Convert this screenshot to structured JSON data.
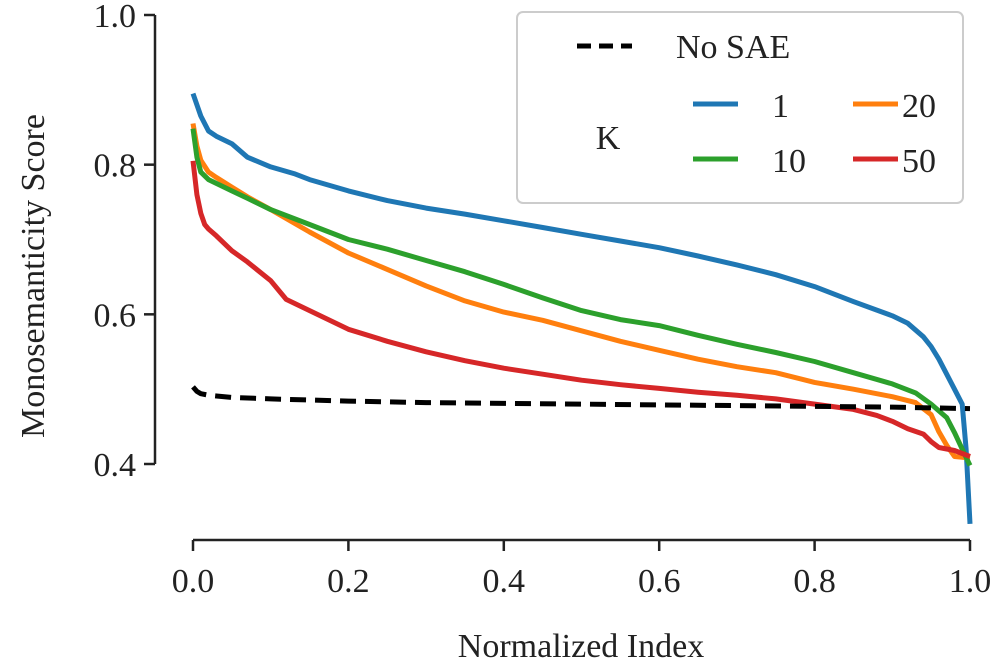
{
  "chart_data": {
    "type": "line",
    "title": "",
    "xlabel": "Normalized Index",
    "ylabel": "Monosemanticity Score",
    "xlim": [
      0.0,
      1.0
    ],
    "ylim": [
      0.32,
      1.0
    ],
    "xticks": [
      "0.0",
      "0.2",
      "0.4",
      "0.6",
      "0.8",
      "1.0"
    ],
    "yticks": [
      "0.4",
      "0.6",
      "0.8",
      "1.0"
    ],
    "grid": false,
    "legend": {
      "placement": "top-right",
      "baseline_label": "No SAE",
      "group_title": "K"
    },
    "series": [
      {
        "name": "No SAE",
        "role": "baseline",
        "color": "#000000",
        "dash": true,
        "x": [
          0.0,
          0.005,
          0.01,
          0.02,
          0.05,
          0.1,
          0.2,
          0.3,
          0.4,
          0.5,
          0.6,
          0.7,
          0.8,
          0.9,
          0.95,
          1.0
        ],
        "y": [
          0.503,
          0.497,
          0.494,
          0.492,
          0.489,
          0.487,
          0.484,
          0.482,
          0.481,
          0.48,
          0.479,
          0.478,
          0.477,
          0.476,
          0.475,
          0.474
        ]
      },
      {
        "name": "1",
        "color": "#1f77b4",
        "x": [
          0.0,
          0.005,
          0.01,
          0.02,
          0.03,
          0.05,
          0.07,
          0.1,
          0.13,
          0.15,
          0.2,
          0.25,
          0.3,
          0.35,
          0.4,
          0.45,
          0.5,
          0.55,
          0.6,
          0.65,
          0.7,
          0.75,
          0.8,
          0.85,
          0.9,
          0.92,
          0.94,
          0.95,
          0.96,
          0.97,
          0.98,
          0.99,
          0.995,
          1.0
        ],
        "y": [
          0.895,
          0.88,
          0.865,
          0.845,
          0.838,
          0.828,
          0.81,
          0.797,
          0.788,
          0.78,
          0.765,
          0.752,
          0.742,
          0.734,
          0.725,
          0.716,
          0.707,
          0.698,
          0.689,
          0.678,
          0.666,
          0.653,
          0.637,
          0.617,
          0.598,
          0.588,
          0.57,
          0.557,
          0.54,
          0.52,
          0.5,
          0.48,
          0.42,
          0.32
        ]
      },
      {
        "name": "10",
        "color": "#2ca02c",
        "x": [
          0.0,
          0.005,
          0.01,
          0.02,
          0.03,
          0.05,
          0.07,
          0.1,
          0.15,
          0.2,
          0.25,
          0.3,
          0.35,
          0.4,
          0.45,
          0.5,
          0.55,
          0.6,
          0.65,
          0.7,
          0.75,
          0.8,
          0.85,
          0.9,
          0.93,
          0.95,
          0.97,
          0.98,
          0.99,
          1.0
        ],
        "y": [
          0.848,
          0.81,
          0.79,
          0.78,
          0.775,
          0.765,
          0.755,
          0.74,
          0.72,
          0.7,
          0.687,
          0.672,
          0.657,
          0.64,
          0.622,
          0.605,
          0.593,
          0.585,
          0.572,
          0.56,
          0.549,
          0.537,
          0.522,
          0.507,
          0.495,
          0.48,
          0.462,
          0.442,
          0.42,
          0.398
        ]
      },
      {
        "name": "20",
        "color": "#ff7f0e",
        "x": [
          0.0,
          0.005,
          0.01,
          0.02,
          0.03,
          0.05,
          0.07,
          0.1,
          0.15,
          0.2,
          0.25,
          0.3,
          0.35,
          0.4,
          0.45,
          0.5,
          0.55,
          0.6,
          0.65,
          0.7,
          0.75,
          0.8,
          0.85,
          0.9,
          0.93,
          0.95,
          0.96,
          0.97,
          0.98,
          1.0
        ],
        "y": [
          0.855,
          0.825,
          0.806,
          0.79,
          0.783,
          0.77,
          0.757,
          0.74,
          0.71,
          0.682,
          0.66,
          0.638,
          0.618,
          0.603,
          0.592,
          0.578,
          0.564,
          0.552,
          0.54,
          0.53,
          0.522,
          0.509,
          0.5,
          0.49,
          0.482,
          0.466,
          0.443,
          0.425,
          0.41,
          0.408
        ]
      },
      {
        "name": "50",
        "color": "#d62728",
        "x": [
          0.0,
          0.005,
          0.01,
          0.015,
          0.02,
          0.03,
          0.05,
          0.07,
          0.1,
          0.12,
          0.15,
          0.2,
          0.25,
          0.3,
          0.35,
          0.4,
          0.45,
          0.5,
          0.55,
          0.6,
          0.65,
          0.7,
          0.75,
          0.8,
          0.85,
          0.88,
          0.9,
          0.92,
          0.94,
          0.95,
          0.96,
          0.98,
          1.0
        ],
        "y": [
          0.805,
          0.76,
          0.735,
          0.72,
          0.714,
          0.705,
          0.685,
          0.67,
          0.645,
          0.62,
          0.605,
          0.58,
          0.564,
          0.55,
          0.538,
          0.528,
          0.52,
          0.512,
          0.506,
          0.501,
          0.496,
          0.492,
          0.487,
          0.48,
          0.473,
          0.465,
          0.457,
          0.447,
          0.44,
          0.43,
          0.422,
          0.418,
          0.41
        ]
      }
    ]
  }
}
